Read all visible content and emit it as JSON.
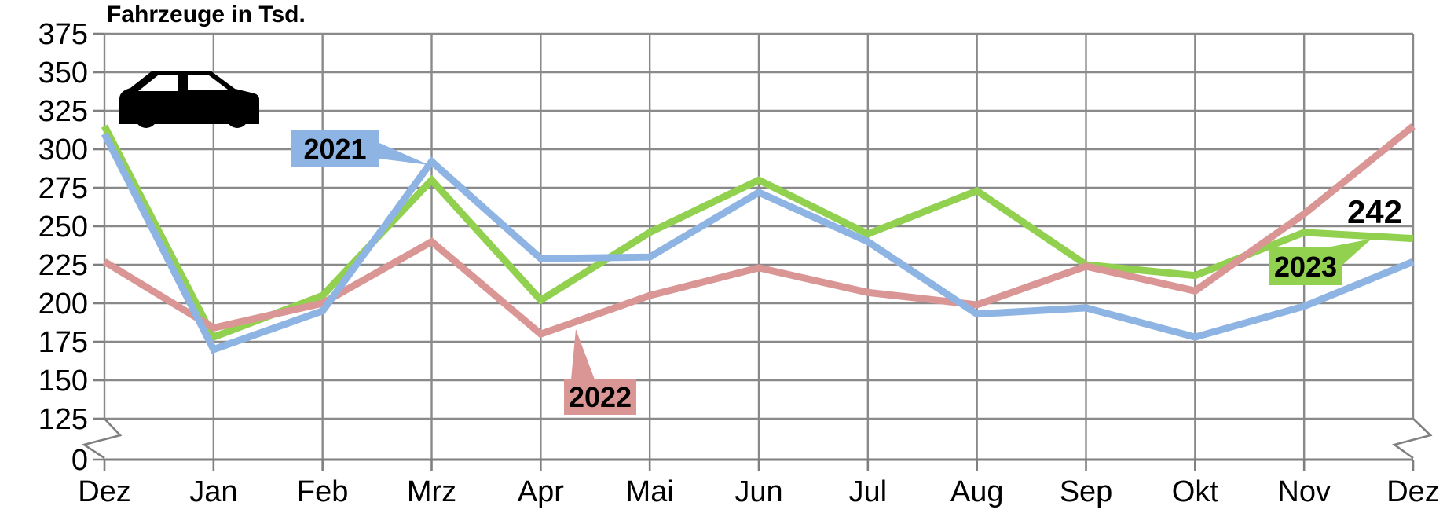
{
  "title": "Fahrzeuge in Tsd.",
  "colors": {
    "background": "#ffffff",
    "grid": "#8a8a8a",
    "axis": "#7f7f7f",
    "text": "#000000",
    "series_2021": "#8EB4E3",
    "series_2022": "#D99694",
    "series_2023": "#92D050"
  },
  "icons": [
    {
      "name": "car-icon",
      "description": "black car silhouette"
    }
  ],
  "chart_data": {
    "type": "line",
    "title": "Fahrzeuge in Tsd.",
    "xlabel": "",
    "ylabel": "Fahrzeuge in Tsd.",
    "categories": [
      "Dez",
      "Jan",
      "Feb",
      "Mrz",
      "Apr",
      "Mai",
      "Jun",
      "Jul",
      "Aug",
      "Sep",
      "Okt",
      "Nov",
      "Dez"
    ],
    "yticks": [
      375,
      350,
      325,
      300,
      275,
      250,
      225,
      200,
      175,
      150,
      125,
      0
    ],
    "ylim_display": [
      125,
      375
    ],
    "axis_break": "between 0 and 125 (zigzag marks at both bottom corners)",
    "grid": "on",
    "legend_position": "callout boxes attached to lines",
    "series": [
      {
        "name": "2021",
        "color": "#8EB4E3",
        "values": [
          310,
          170,
          195,
          292,
          229,
          230,
          272,
          240,
          193,
          197,
          178,
          198,
          227
        ]
      },
      {
        "name": "2022",
        "color": "#D99694",
        "values": [
          227,
          184,
          200,
          240,
          180,
          205,
          223,
          207,
          199,
          224,
          208,
          258,
          315
        ]
      },
      {
        "name": "2023",
        "color": "#92D050",
        "values": [
          315,
          178,
          205,
          280,
          202,
          246,
          280,
          245,
          273,
          225,
          218,
          246,
          242
        ]
      }
    ],
    "annotation": {
      "text": "242"
    }
  }
}
